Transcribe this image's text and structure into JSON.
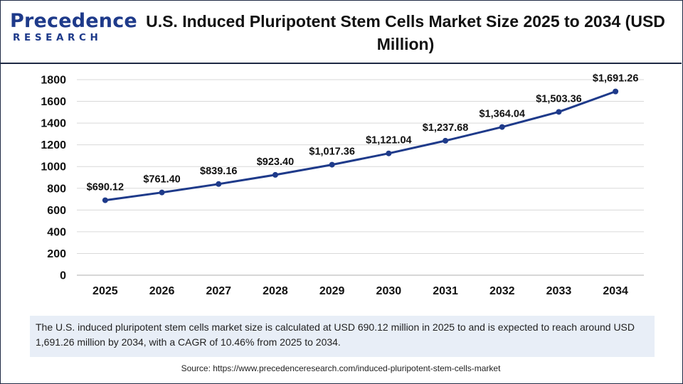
{
  "logo": {
    "main": "Precedence",
    "sub": "RESEARCH"
  },
  "title": "U.S. Induced Pluripotent Stem Cells Market Size 2025 to 2034 (USD Million)",
  "summary": "The U.S. induced pluripotent stem cells market size is calculated at USD 690.12 million in 2025 to and is expected to reach around USD 1,691.26 million by 2034, with a CAGR of 10.46% from 2025 to 2034.",
  "source": "Source: https://www.precedenceresearch.com/induced-pluripotent-stem-cells-market",
  "colors": {
    "line": "#1e3a8a",
    "grid": "#d9d9d9",
    "axis": "#bfbfbf",
    "brand": "#1e3a8a",
    "summary_bg": "#e8eef7"
  },
  "chart_data": {
    "type": "line",
    "title": "U.S. Induced Pluripotent Stem Cells Market Size 2025 to 2034 (USD Million)",
    "xlabel": "",
    "ylabel": "",
    "categories": [
      "2025",
      "2026",
      "2027",
      "2028",
      "2029",
      "2030",
      "2031",
      "2032",
      "2033",
      "2034"
    ],
    "values": [
      690.12,
      761.4,
      839.16,
      923.4,
      1017.36,
      1121.04,
      1237.68,
      1364.04,
      1503.36,
      1691.26
    ],
    "data_labels": [
      "$690.12",
      "$761.40",
      "$839.16",
      "$923.40",
      "$1,017.36",
      "$1,121.04",
      "$1,237.68",
      "$1,364.04",
      "$1,503.36",
      "$1,691.26"
    ],
    "yticks": [
      0,
      200,
      400,
      600,
      800,
      1000,
      1200,
      1400,
      1600,
      1800
    ],
    "ylim": [
      0,
      1800
    ],
    "grid": true,
    "legend": "none"
  }
}
